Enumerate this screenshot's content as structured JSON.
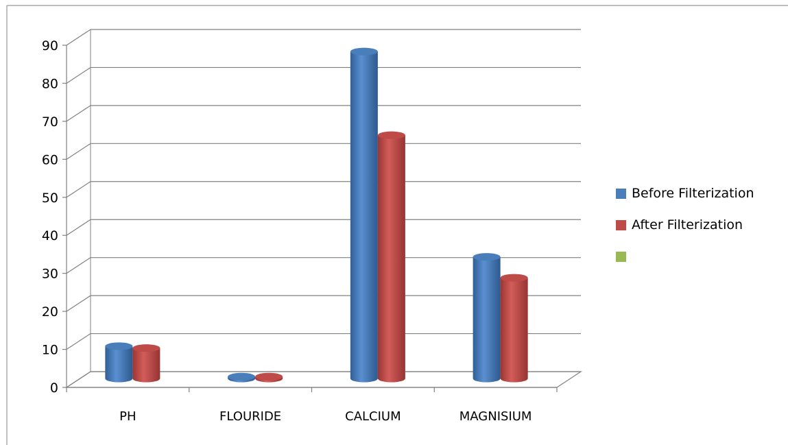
{
  "chart_data": {
    "type": "bar",
    "categories": [
      "PH",
      "FLOURIDE",
      "CALCIUM",
      "MAGNISIUM"
    ],
    "series": [
      {
        "name": "Before Filterization",
        "values": [
          8.5,
          0.5,
          86,
          32
        ],
        "color": "#4a7ebb"
      },
      {
        "name": "After Filterization",
        "values": [
          8,
          0.5,
          64,
          26.5
        ],
        "color": "#be4b48"
      },
      {
        "name": "",
        "values": [
          0,
          0,
          0,
          0
        ],
        "color": "#98b954"
      }
    ],
    "ylim": [
      0,
      90
    ],
    "yticks": [
      "0",
      "10",
      "20",
      "30",
      "40",
      "50",
      "60",
      "70",
      "80",
      "90"
    ],
    "grid": true,
    "legend": "right",
    "style": "3d-cylinder"
  }
}
